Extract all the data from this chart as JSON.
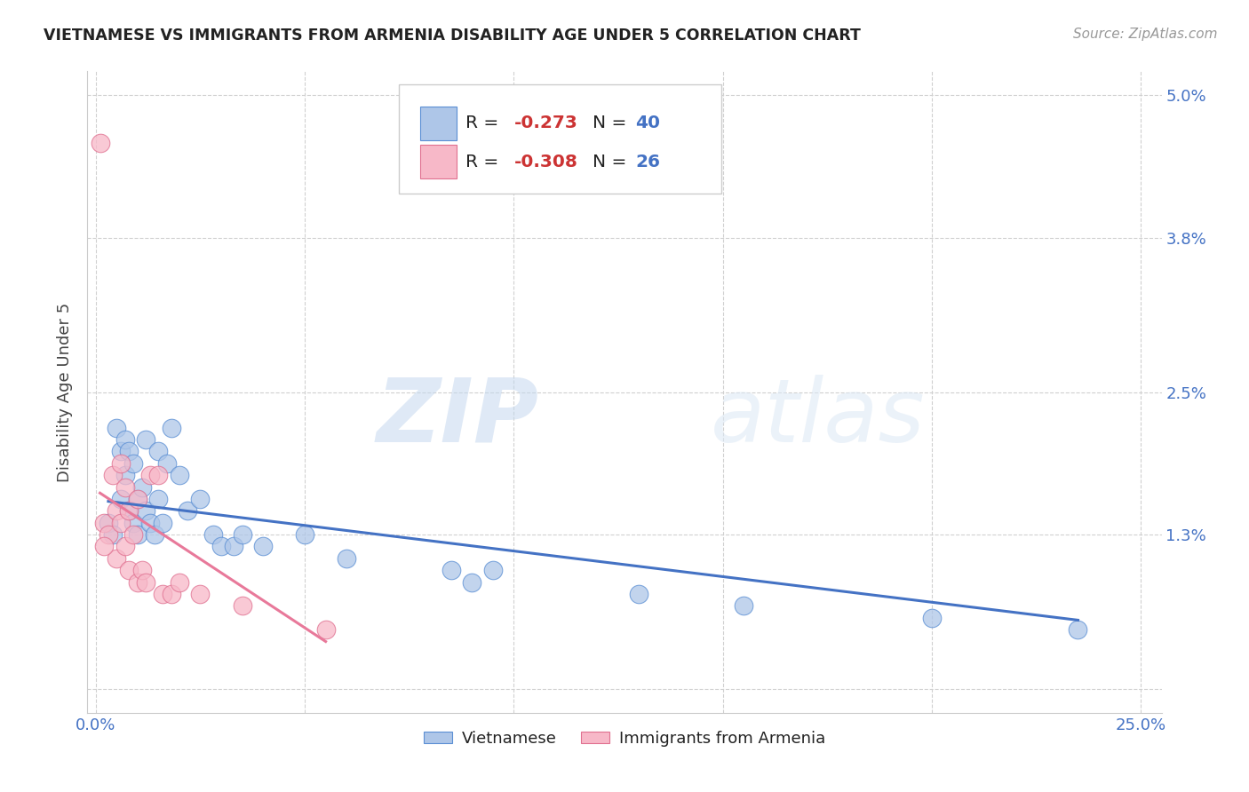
{
  "title": "VIETNAMESE VS IMMIGRANTS FROM ARMENIA DISABILITY AGE UNDER 5 CORRELATION CHART",
  "source": "Source: ZipAtlas.com",
  "ylabel": "Disability Age Under 5",
  "xlim": [
    -0.002,
    0.255
  ],
  "ylim": [
    -0.002,
    0.052
  ],
  "yticks": [
    0.0,
    0.013,
    0.025,
    0.038,
    0.05
  ],
  "ytick_labels": [
    "",
    "1.3%",
    "2.5%",
    "3.8%",
    "5.0%"
  ],
  "xticks": [
    0.0,
    0.05,
    0.1,
    0.15,
    0.2,
    0.25
  ],
  "xtick_labels": [
    "0.0%",
    "",
    "",
    "",
    "",
    "25.0%"
  ],
  "blue_fill": "#aec6e8",
  "blue_edge": "#5b8fd4",
  "pink_fill": "#f7b8c8",
  "pink_edge": "#e07090",
  "blue_line": "#4472c4",
  "pink_line": "#e8799a",
  "r_blue": "-0.273",
  "n_blue": "40",
  "r_pink": "-0.308",
  "n_pink": "26",
  "watermark_zip": "ZIP",
  "watermark_atlas": "atlas",
  "blue_x": [
    0.003,
    0.004,
    0.005,
    0.006,
    0.006,
    0.007,
    0.007,
    0.008,
    0.008,
    0.009,
    0.009,
    0.01,
    0.01,
    0.011,
    0.012,
    0.012,
    0.013,
    0.014,
    0.015,
    0.015,
    0.016,
    0.017,
    0.018,
    0.02,
    0.022,
    0.025,
    0.028,
    0.03,
    0.033,
    0.035,
    0.04,
    0.05,
    0.06,
    0.085,
    0.09,
    0.095,
    0.13,
    0.155,
    0.2,
    0.235
  ],
  "blue_y": [
    0.014,
    0.013,
    0.022,
    0.02,
    0.016,
    0.021,
    0.018,
    0.02,
    0.015,
    0.019,
    0.014,
    0.016,
    0.013,
    0.017,
    0.021,
    0.015,
    0.014,
    0.013,
    0.02,
    0.016,
    0.014,
    0.019,
    0.022,
    0.018,
    0.015,
    0.016,
    0.013,
    0.012,
    0.012,
    0.013,
    0.012,
    0.013,
    0.011,
    0.01,
    0.009,
    0.01,
    0.008,
    0.007,
    0.006,
    0.005
  ],
  "pink_x": [
    0.001,
    0.002,
    0.003,
    0.004,
    0.005,
    0.005,
    0.006,
    0.006,
    0.007,
    0.007,
    0.008,
    0.008,
    0.009,
    0.01,
    0.01,
    0.011,
    0.012,
    0.013,
    0.015,
    0.016,
    0.018,
    0.02,
    0.025,
    0.035,
    0.055,
    0.002
  ],
  "pink_y": [
    0.046,
    0.014,
    0.013,
    0.018,
    0.015,
    0.011,
    0.019,
    0.014,
    0.017,
    0.012,
    0.015,
    0.01,
    0.013,
    0.016,
    0.009,
    0.01,
    0.009,
    0.018,
    0.018,
    0.008,
    0.008,
    0.009,
    0.008,
    0.007,
    0.005,
    0.012
  ],
  "blue_line_x": [
    0.003,
    0.235
  ],
  "blue_line_y": [
    0.0158,
    0.0058
  ],
  "pink_line_x": [
    0.001,
    0.055
  ],
  "pink_line_y": [
    0.0165,
    0.004
  ]
}
